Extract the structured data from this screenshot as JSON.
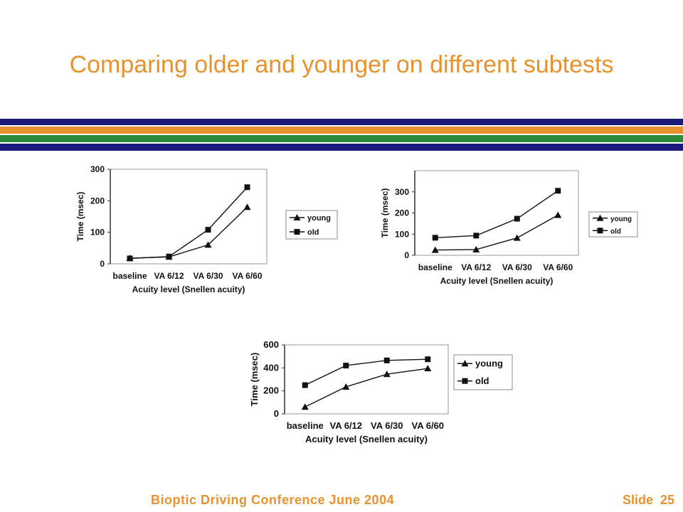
{
  "slide": {
    "title": "Comparing older and younger on different subtests",
    "footer_left": "Bioptic Driving Conference June 2004",
    "footer_slide_label": "Slide",
    "footer_slide_number": "25",
    "colors": {
      "title": "#e8922e",
      "stripe_navy": "#1b1a7a",
      "stripe_orange": "#e8922e",
      "stripe_green": "#2a8a3a"
    }
  },
  "chart_data": [
    {
      "type": "line",
      "categories": [
        "baseline",
        "VA 6/12",
        "VA 6/30",
        "VA 6/60"
      ],
      "series": [
        {
          "name": "young",
          "marker": "triangle",
          "values": [
            18,
            22,
            60,
            180
          ]
        },
        {
          "name": "old",
          "marker": "square",
          "values": [
            17,
            23,
            108,
            243
          ]
        }
      ],
      "xlabel": "Acuity level (Snellen acuity)",
      "ylabel": "Time (msec)",
      "ylim": [
        0,
        300
      ],
      "yticks": [
        0,
        100,
        200,
        300
      ],
      "grid": false,
      "legend": "right"
    },
    {
      "type": "line",
      "categories": [
        "baseline",
        "VA 6/12",
        "VA 6/30",
        "VA 6/60"
      ],
      "series": [
        {
          "name": "young",
          "marker": "triangle",
          "values": [
            25,
            27,
            82,
            190
          ]
        },
        {
          "name": "old",
          "marker": "square",
          "values": [
            83,
            93,
            173,
            305
          ]
        }
      ],
      "xlabel": "Acuity level (Snellen acuity)",
      "ylabel": "Time (msec)",
      "ylim": [
        0,
        400
      ],
      "yticks": [
        0,
        100,
        200,
        300
      ],
      "grid": false,
      "legend": "right"
    },
    {
      "type": "line",
      "categories": [
        "baseline",
        "VA 6/12",
        "VA 6/30",
        "VA 6/60"
      ],
      "series": [
        {
          "name": "young",
          "marker": "triangle",
          "values": [
            60,
            235,
            345,
            395
          ]
        },
        {
          "name": "old",
          "marker": "square",
          "values": [
            250,
            420,
            465,
            475
          ]
        }
      ],
      "xlabel": "Acuity level (Snellen acuity)",
      "ylabel": "Time (msec)",
      "ylim": [
        0,
        600
      ],
      "yticks": [
        0,
        200,
        400,
        600
      ],
      "grid": false,
      "legend": "right"
    }
  ]
}
